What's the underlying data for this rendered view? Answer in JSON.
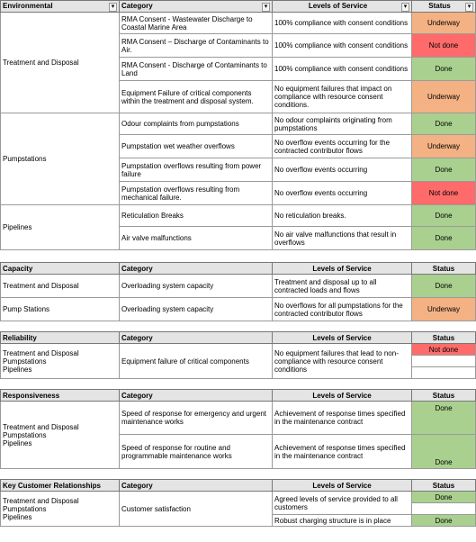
{
  "sections": {
    "environmental": {
      "title": "Environmental",
      "col_category": "Category",
      "col_los": "Levels of Service",
      "col_status": "Status",
      "groups": {
        "treatment": "Treatment and Disposal",
        "pumpstations": "Pumpstations",
        "pipelines": "Pipelines"
      },
      "rows": [
        {
          "category": "RMA Consent - Wastewater Discharge to Coastal Marine Area",
          "los": "100% compliance with consent conditions",
          "status": "Underway"
        },
        {
          "category": "RMA Consent – Discharge of Contaminants to Air.",
          "los": "100% compliance with consent conditions",
          "status": "Not done"
        },
        {
          "category": "RMA Consent - Discharge of Contaminants to Land",
          "los": "100% compliance with consent conditions",
          "status": "Done"
        },
        {
          "category": "Equipment Failure of critical components within the treatment and disposal system.",
          "los": "No equipment failures that impact on compliance with resource consent conditions.",
          "status": "Underway"
        },
        {
          "category": "Odour complaints from pumpstations",
          "los": "No odour complaints originating from pumpstations",
          "status": "Done"
        },
        {
          "category": "Pumpstation wet weather overflows",
          "los": "No overflow events occurring for the contracted contributor flows",
          "status": "Underway"
        },
        {
          "category": "Pumpstation overflows resulting from power failure",
          "los": "No overflow events occurring",
          "status": "Done"
        },
        {
          "category": "Pumpstation overflows resulting from mechanical failure.",
          "los": "No overflow events occurring",
          "status": "Not done"
        },
        {
          "category": "Reticulation Breaks",
          "los": "No reticulation breaks.",
          "status": "Done"
        },
        {
          "category": "Air valve malfunctions",
          "los": "No air valve malfunctions that result in overflows",
          "status": "Done"
        }
      ]
    },
    "capacity": {
      "title": "Capacity",
      "col_category": "Category",
      "col_los": "Levels of Service",
      "col_status": "Status",
      "rows": [
        {
          "area": "Treatment and Disposal",
          "category": "Overloading system capacity",
          "los": "Treatment and disposal up to all contracted loads and flows",
          "status": "Done"
        },
        {
          "area": "Pump Stations",
          "category": "Overloading system capacity",
          "los": "No overflows for all pumpstations for the contracted contributor flows",
          "status": "Underway"
        }
      ]
    },
    "reliability": {
      "title": "Reliability",
      "col_category": "Category",
      "col_los": "Levels of Service",
      "col_status": "Status",
      "areas": [
        "Treatment and Disposal",
        "Pumpstations",
        "Pipelines"
      ],
      "category": "Equipment failure of critical components",
      "los": "No equipment failures that lead to non-compliance with resource consent conditions",
      "status": "Not done"
    },
    "responsiveness": {
      "title": "Responsiveness",
      "col_category": "Category",
      "col_los": "Levels of Service",
      "col_status": "Status",
      "areas": [
        "Treatment and Disposal",
        "Pumpstations",
        "Pipelines"
      ],
      "rows": [
        {
          "category": "Speed of response for emergency and urgent maintenance works",
          "los": "Achievement of response times specified in the maintenance contract",
          "status": "Done"
        },
        {
          "category": "Speed of response for routine and programmable maintenance works",
          "los": "Achievement of response times specified in the maintenance contract",
          "status": "Done"
        }
      ]
    },
    "customer": {
      "title": "Key Customer Relationships",
      "col_category": "Category",
      "col_los": "Levels of Service",
      "col_status": "Status",
      "areas": [
        "Treatment and Disposal",
        "Pumpstations",
        "Pipelines"
      ],
      "category": "Customer satisfaction",
      "rows": [
        {
          "los": "Agreed levels of service provided to all customers",
          "status": "Done"
        },
        {
          "los": "Robust charging structure is in place",
          "status": "Done"
        }
      ]
    }
  },
  "colors": {
    "done": "#a9d08e",
    "underway": "#f4b183",
    "not_done": "#ff6b6b",
    "header": "#e4e4e4"
  },
  "icons": {
    "filter": "dropdown-filter-icon"
  }
}
